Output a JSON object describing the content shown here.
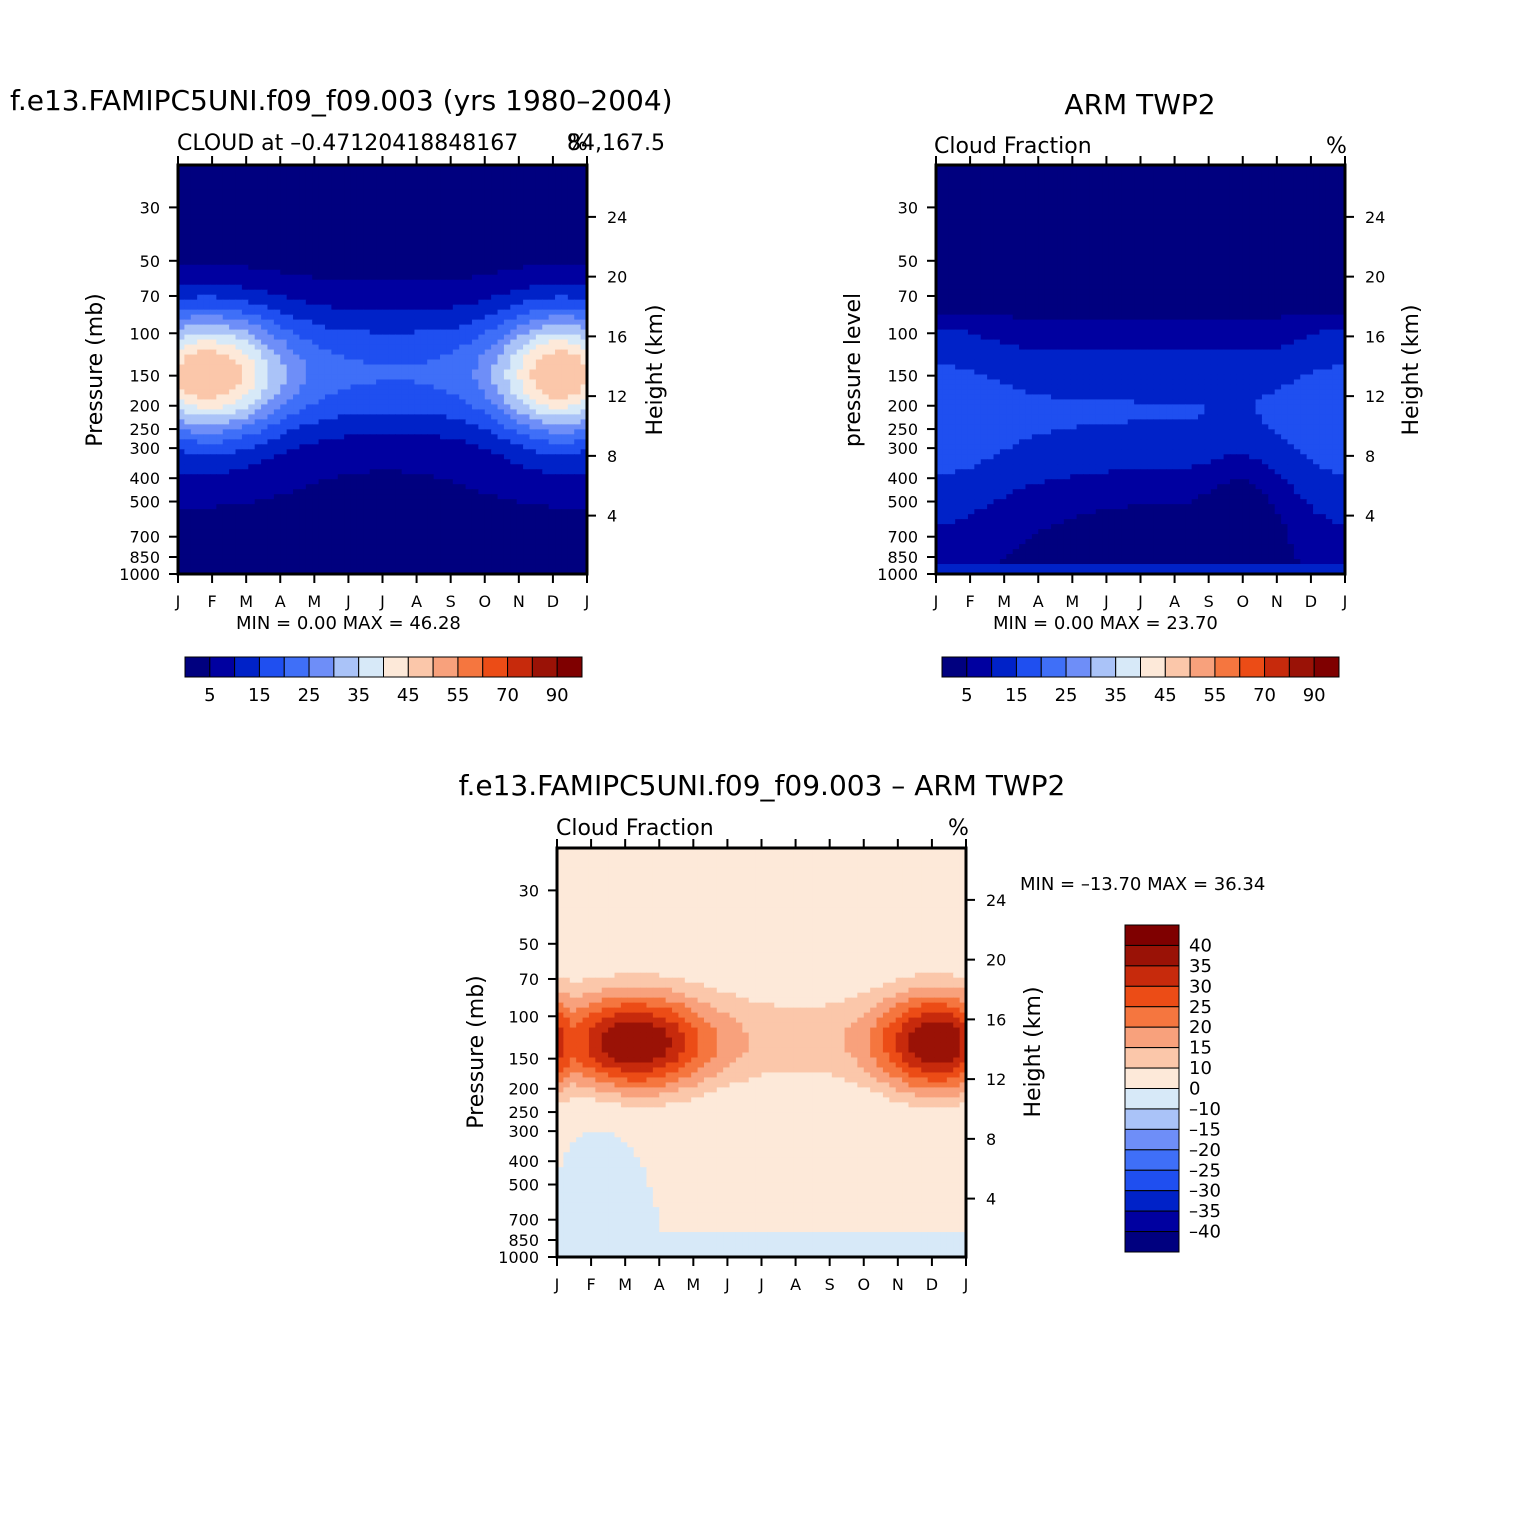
{
  "palette": {
    "cloud": [
      "#00007f",
      "#0000a0",
      "#0022c8",
      "#1f4ff0",
      "#3f6ff8",
      "#6e8ef8",
      "#aac3f8",
      "#d7e9f8",
      "#fde9d9",
      "#fbc7aa",
      "#f8a17c",
      "#f5763f",
      "#ec4c16",
      "#c72a0c",
      "#9a1206",
      "#7f0000"
    ],
    "diff": [
      "#00007f",
      "#0000a0",
      "#0022c8",
      "#1f4ff0",
      "#3f6ff8",
      "#6e8ef8",
      "#aac3f8",
      "#d7e9f8",
      "#fde9d9",
      "#fbc7aa",
      "#f8a17c",
      "#f5763f",
      "#ec4c16",
      "#c72a0c",
      "#9a1206",
      "#7f0000"
    ]
  },
  "chart_data": [
    {
      "type": "heatmap",
      "title": "f.e13.FAMIPC5UNI.f09_f09.003 (yrs 1980–2004)",
      "subtitle_left": "CLOUD at –0.47120418848167",
      "subtitle_right": "%",
      "subtitle_tail": "84,167.5",
      "ylabel": "Pressure (mb)",
      "y2label": "Height (km)",
      "x_ticks": [
        "J",
        "F",
        "M",
        "A",
        "M",
        "J",
        "J",
        "A",
        "S",
        "O",
        "N",
        "D",
        "J"
      ],
      "y_ticks": [
        30,
        50,
        70,
        100,
        150,
        200,
        250,
        300,
        400,
        500,
        700,
        850,
        1000
      ],
      "y2_ticks": [
        24,
        20,
        16,
        12,
        8,
        4
      ],
      "ylim": [
        1000,
        20
      ],
      "minmax": "MIN =     0.00  MAX =    46.28",
      "colorbar_labels": [
        "5",
        "15",
        "25",
        "35",
        "45",
        "55",
        "70",
        "90"
      ],
      "levels": [
        5,
        10,
        15,
        20,
        25,
        30,
        35,
        40,
        45,
        50,
        55,
        60,
        70,
        80,
        90
      ],
      "field": "model"
    },
    {
      "type": "heatmap",
      "title": "ARM TWP2",
      "subtitle_left": "Cloud Fraction",
      "subtitle_right": "%",
      "ylabel": "pressure level",
      "y2label": "Height (km)",
      "x_ticks": [
        "J",
        "F",
        "M",
        "A",
        "M",
        "J",
        "J",
        "A",
        "S",
        "O",
        "N",
        "D",
        "J"
      ],
      "y_ticks": [
        30,
        50,
        70,
        100,
        150,
        200,
        250,
        300,
        400,
        500,
        700,
        850,
        1000
      ],
      "y2_ticks": [
        24,
        20,
        16,
        12,
        8,
        4
      ],
      "ylim": [
        1000,
        20
      ],
      "minmax": "MIN =     0.00  MAX =    23.70",
      "colorbar_labels": [
        "5",
        "15",
        "25",
        "35",
        "45",
        "55",
        "70",
        "90"
      ],
      "levels": [
        5,
        10,
        15,
        20,
        25,
        30,
        35,
        40,
        45,
        50,
        55,
        60,
        70,
        80,
        90
      ],
      "field": "obs"
    },
    {
      "type": "heatmap",
      "title": "f.e13.FAMIPC5UNI.f09_f09.003 – ARM TWP2",
      "subtitle_left": "Cloud Fraction",
      "subtitle_right": "%",
      "ylabel": "Pressure (mb)",
      "y2label": "Height (km)",
      "x_ticks": [
        "J",
        "F",
        "M",
        "A",
        "M",
        "J",
        "J",
        "A",
        "S",
        "O",
        "N",
        "D",
        "J"
      ],
      "y_ticks": [
        30,
        50,
        70,
        100,
        150,
        200,
        250,
        300,
        400,
        500,
        700,
        850,
        1000
      ],
      "y2_ticks": [
        24,
        20,
        16,
        12,
        8,
        4
      ],
      "ylim": [
        1000,
        20
      ],
      "minmax": "MIN = –13.70  MAX =    36.34",
      "colorbar_labels": [
        "40",
        "35",
        "30",
        "25",
        "20",
        "15",
        "10",
        "0",
        "–10",
        "–15",
        "–20",
        "–25",
        "–30",
        "–35",
        "–40"
      ],
      "levels": [
        -40,
        -35,
        -30,
        -25,
        -20,
        -15,
        -10,
        0,
        10,
        15,
        20,
        25,
        30,
        35,
        40
      ],
      "field": "diff"
    }
  ]
}
